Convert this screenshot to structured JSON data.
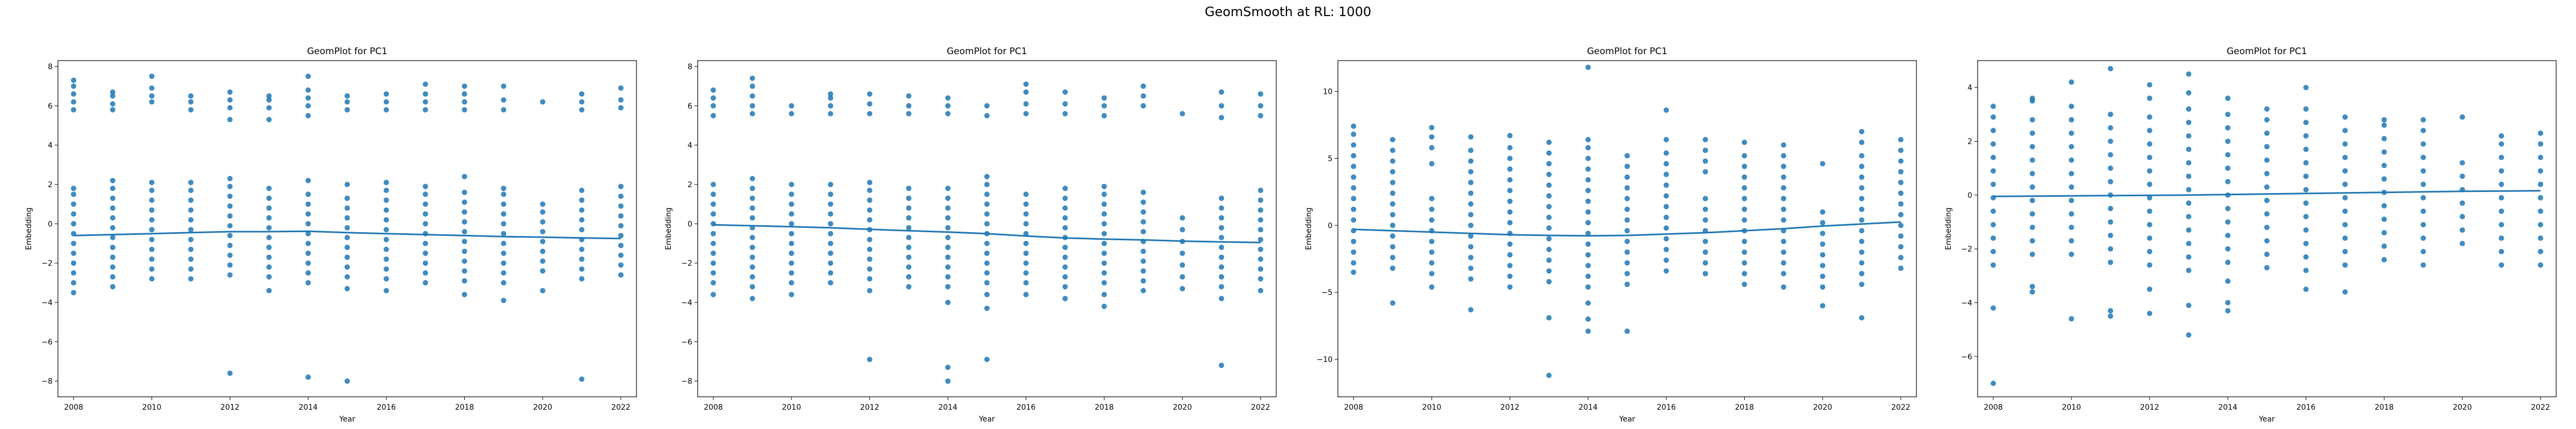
{
  "figure": {
    "suptitle": "GeomSmooth at RL: 1000",
    "point_color": "#1f77b4",
    "line_color": "#1f77b4",
    "axis_color": "#000000"
  },
  "chart_data": [
    {
      "type": "scatter",
      "title": "GeomPlot for PC1",
      "xlabel": "Year",
      "ylabel": "Embedding",
      "xlim": [
        2007.6,
        2022.4
      ],
      "ylim": [
        -8.8,
        8.3
      ],
      "xticks": [
        2008,
        2010,
        2012,
        2014,
        2016,
        2018,
        2020,
        2022
      ],
      "yticks": [
        -8,
        -6,
        -4,
        -2,
        0,
        2,
        4,
        6,
        8
      ],
      "years": [
        2008,
        2009,
        2010,
        2011,
        2012,
        2013,
        2014,
        2015,
        2016,
        2017,
        2018,
        2019,
        2020,
        2021,
        2022
      ],
      "points": {
        "2008": [
          -3.5,
          -3.0,
          -2.5,
          -2.0,
          -1.5,
          -1.0,
          -0.5,
          0.0,
          0.5,
          1.0,
          1.5,
          1.8,
          5.8,
          6.2,
          6.6,
          7.0,
          7.3
        ],
        "2009": [
          -3.2,
          -2.7,
          -2.2,
          -1.7,
          -1.2,
          -0.7,
          -0.2,
          0.3,
          0.8,
          1.3,
          1.8,
          2.2,
          5.8,
          6.1,
          6.5,
          6.7
        ],
        "2010": [
          -2.8,
          -2.3,
          -1.8,
          -1.3,
          -0.8,
          -0.3,
          0.2,
          0.7,
          1.2,
          1.7,
          2.1,
          6.2,
          6.5,
          6.9,
          7.5
        ],
        "2011": [
          -2.8,
          -2.3,
          -1.8,
          -1.3,
          -0.8,
          -0.3,
          0.2,
          0.7,
          1.2,
          1.7,
          2.1,
          5.8,
          6.2,
          6.5
        ],
        "2012": [
          -7.6,
          -2.6,
          -2.1,
          -1.6,
          -1.1,
          -0.6,
          -0.1,
          0.4,
          0.9,
          1.4,
          1.9,
          2.3,
          5.3,
          5.9,
          6.3,
          6.7
        ],
        "2013": [
          -3.4,
          -2.7,
          -2.2,
          -1.7,
          -1.2,
          -0.7,
          -0.2,
          0.3,
          0.8,
          1.3,
          1.8,
          5.3,
          5.9,
          6.3,
          6.5
        ],
        "2014": [
          -7.8,
          -3.0,
          -2.5,
          -2.0,
          -1.5,
          -1.0,
          -0.5,
          0.0,
          0.5,
          1.0,
          1.5,
          2.2,
          5.5,
          6.0,
          6.4,
          6.8,
          7.5
        ],
        "2015": [
          -8.0,
          -3.3,
          -2.7,
          -2.2,
          -1.7,
          -1.2,
          -0.7,
          -0.2,
          0.3,
          0.8,
          1.3,
          2.0,
          5.8,
          6.2,
          6.5
        ],
        "2016": [
          -3.4,
          -2.8,
          -2.3,
          -1.8,
          -1.3,
          -0.8,
          -0.3,
          0.2,
          0.7,
          1.2,
          1.7,
          2.1,
          5.8,
          6.2,
          6.6
        ],
        "2017": [
          -3.0,
          -2.5,
          -2.0,
          -1.5,
          -1.0,
          -0.5,
          0.0,
          0.5,
          1.0,
          1.5,
          1.9,
          5.8,
          6.2,
          6.6,
          7.1
        ],
        "2018": [
          -3.6,
          -2.9,
          -2.4,
          -1.9,
          -1.4,
          -0.9,
          -0.4,
          0.1,
          0.6,
          1.1,
          1.6,
          2.4,
          5.8,
          6.2,
          6.6,
          7.0
        ],
        "2019": [
          -3.9,
          -3.0,
          -2.5,
          -2.0,
          -1.5,
          -1.0,
          -0.5,
          0.0,
          0.5,
          1.0,
          1.5,
          1.8,
          5.8,
          6.3,
          7.0
        ],
        "2020": [
          -3.4,
          -2.4,
          -1.9,
          -1.4,
          -0.9,
          -0.4,
          0.1,
          0.6,
          1.0,
          6.2
        ],
        "2021": [
          -7.9,
          -2.8,
          -2.3,
          -1.8,
          -1.3,
          -0.8,
          -0.3,
          0.2,
          0.7,
          1.2,
          1.7,
          5.8,
          6.2,
          6.6
        ],
        "2022": [
          -2.6,
          -2.1,
          -1.6,
          -1.1,
          -0.6,
          -0.1,
          0.4,
          0.9,
          1.4,
          1.9,
          5.9,
          6.3,
          6.9
        ]
      },
      "smooth": [
        -0.6,
        -0.55,
        -0.5,
        -0.45,
        -0.4,
        -0.4,
        -0.38,
        -0.45,
        -0.5,
        -0.55,
        -0.6,
        -0.65,
        -0.68,
        -0.72,
        -0.75
      ]
    },
    {
      "type": "scatter",
      "title": "GeomPlot for PC1",
      "xlabel": "Year",
      "ylabel": "Embedding",
      "xlim": [
        2007.6,
        2022.4
      ],
      "ylim": [
        -8.8,
        8.3
      ],
      "xticks": [
        2008,
        2010,
        2012,
        2014,
        2016,
        2018,
        2020,
        2022
      ],
      "yticks": [
        -8,
        -6,
        -4,
        -2,
        0,
        2,
        4,
        6,
        8
      ],
      "years": [
        2008,
        2009,
        2010,
        2011,
        2012,
        2013,
        2014,
        2015,
        2016,
        2017,
        2018,
        2019,
        2020,
        2021,
        2022
      ],
      "points": {
        "2008": [
          -3.6,
          -3.0,
          -2.5,
          -2.0,
          -1.5,
          -1.0,
          -0.5,
          0.0,
          0.5,
          1.0,
          1.5,
          2.0,
          5.5,
          6.0,
          6.4,
          6.8
        ],
        "2009": [
          -3.8,
          -3.2,
          -2.7,
          -2.2,
          -1.7,
          -1.2,
          -0.7,
          -0.2,
          0.3,
          0.8,
          1.3,
          1.8,
          2.3,
          5.6,
          6.0,
          6.5,
          7.0,
          7.4
        ],
        "2010": [
          -3.6,
          -3.0,
          -2.5,
          -2.0,
          -1.5,
          -1.0,
          -0.5,
          0.0,
          0.5,
          1.0,
          1.5,
          2.0,
          5.6,
          6.0
        ],
        "2011": [
          -3.0,
          -2.5,
          -2.0,
          -1.5,
          -1.0,
          -0.5,
          0.0,
          0.5,
          1.0,
          1.5,
          2.0,
          5.6,
          6.0,
          6.4,
          6.6
        ],
        "2012": [
          -6.9,
          -3.4,
          -2.8,
          -2.3,
          -1.8,
          -1.3,
          -0.8,
          -0.3,
          0.2,
          0.7,
          1.2,
          1.7,
          2.1,
          5.6,
          6.1,
          6.6
        ],
        "2013": [
          -3.2,
          -2.7,
          -2.2,
          -1.7,
          -1.2,
          -0.7,
          -0.2,
          0.3,
          0.8,
          1.3,
          1.8,
          5.6,
          6.0,
          6.5
        ],
        "2014": [
          -8.0,
          -7.3,
          -4.0,
          -3.2,
          -2.7,
          -2.2,
          -1.7,
          -1.2,
          -0.7,
          -0.2,
          0.3,
          0.8,
          1.3,
          1.8,
          5.6,
          6.0,
          6.4
        ],
        "2015": [
          -6.9,
          -4.3,
          -3.6,
          -3.0,
          -2.5,
          -2.0,
          -1.5,
          -1.0,
          -0.5,
          0.0,
          0.5,
          1.0,
          1.5,
          2.0,
          2.4,
          5.5,
          6.0
        ],
        "2016": [
          -3.6,
          -3.0,
          -2.5,
          -2.0,
          -1.5,
          -1.0,
          -0.5,
          0.0,
          0.5,
          1.0,
          1.5,
          5.6,
          6.1,
          6.7,
          7.1
        ],
        "2017": [
          -3.8,
          -3.2,
          -2.7,
          -2.2,
          -1.7,
          -1.2,
          -0.7,
          -0.2,
          0.3,
          0.8,
          1.3,
          1.8,
          5.6,
          6.1,
          6.7
        ],
        "2018": [
          -4.2,
          -3.6,
          -3.0,
          -2.5,
          -2.0,
          -1.5,
          -1.0,
          -0.5,
          0.0,
          0.5,
          1.0,
          1.5,
          1.9,
          5.5,
          6.0,
          6.4
        ],
        "2019": [
          -3.4,
          -2.9,
          -2.4,
          -1.9,
          -1.4,
          -0.9,
          -0.4,
          0.1,
          0.6,
          1.1,
          1.6,
          6.0,
          6.5,
          7.0
        ],
        "2020": [
          -3.3,
          -2.7,
          -2.1,
          -1.5,
          -0.9,
          -0.3,
          0.3,
          5.6
        ],
        "2021": [
          -7.2,
          -3.8,
          -3.2,
          -2.7,
          -2.2,
          -1.7,
          -1.2,
          -0.7,
          -0.2,
          0.3,
          0.8,
          1.3,
          5.4,
          6.0,
          6.7
        ],
        "2022": [
          -3.4,
          -2.8,
          -2.3,
          -1.8,
          -1.3,
          -0.8,
          -0.3,
          0.2,
          0.7,
          1.2,
          1.7,
          5.5,
          6.0,
          6.6
        ]
      },
      "smooth": [
        -0.05,
        -0.1,
        -0.15,
        -0.2,
        -0.28,
        -0.35,
        -0.42,
        -0.5,
        -0.62,
        -0.72,
        -0.78,
        -0.82,
        -0.88,
        -0.92,
        -0.95
      ]
    },
    {
      "type": "scatter",
      "title": "GeomPlot for PC1",
      "xlabel": "Year",
      "ylabel": "Embedding",
      "xlim": [
        2007.6,
        2022.4
      ],
      "ylim": [
        -12.8,
        12.3
      ],
      "xticks": [
        2008,
        2010,
        2012,
        2014,
        2016,
        2018,
        2020,
        2022
      ],
      "yticks": [
        -10,
        -5,
        0,
        5,
        10
      ],
      "years": [
        2008,
        2009,
        2010,
        2011,
        2012,
        2013,
        2014,
        2015,
        2016,
        2017,
        2018,
        2019,
        2020,
        2021,
        2022
      ],
      "points": {
        "2008": [
          -3.5,
          -2.8,
          -2.0,
          -1.2,
          -0.4,
          0.4,
          1.2,
          2.0,
          2.8,
          3.6,
          4.4,
          5.2,
          6.0,
          6.8,
          7.4
        ],
        "2009": [
          -5.8,
          -3.2,
          -2.4,
          -1.6,
          -0.8,
          0.0,
          0.8,
          1.6,
          2.4,
          3.2,
          4.0,
          4.8,
          5.6,
          6.4
        ],
        "2010": [
          -4.6,
          -3.6,
          -2.8,
          -2.0,
          -1.2,
          -0.4,
          0.4,
          1.2,
          2.0,
          4.6,
          5.8,
          6.6,
          7.3
        ],
        "2011": [
          -6.3,
          -4.0,
          -3.2,
          -2.4,
          -1.6,
          -0.8,
          0.0,
          0.8,
          1.6,
          2.4,
          3.2,
          4.0,
          4.8,
          5.6,
          6.6
        ],
        "2012": [
          -4.6,
          -3.8,
          -3.0,
          -2.2,
          -1.4,
          -0.6,
          0.2,
          1.0,
          1.8,
          2.6,
          3.4,
          4.2,
          5.0,
          5.8,
          6.7
        ],
        "2013": [
          -11.2,
          -6.9,
          -4.2,
          -3.4,
          -2.6,
          -1.8,
          -1.0,
          -0.2,
          0.6,
          1.4,
          2.2,
          3.0,
          3.8,
          4.6,
          5.4,
          6.2
        ],
        "2014": [
          -7.9,
          -7.0,
          -5.8,
          -4.6,
          -3.8,
          -3.0,
          -2.2,
          -1.4,
          -0.6,
          0.2,
          1.0,
          1.8,
          2.6,
          3.4,
          4.2,
          5.0,
          5.8,
          6.4,
          11.8
        ],
        "2015": [
          -7.9,
          -4.4,
          -3.6,
          -2.8,
          -2.0,
          -1.2,
          -0.4,
          0.4,
          1.2,
          2.0,
          2.8,
          3.6,
          4.4,
          5.2
        ],
        "2016": [
          -3.4,
          -2.6,
          -1.8,
          -1.0,
          -0.2,
          0.6,
          1.4,
          2.2,
          3.0,
          3.8,
          4.6,
          5.4,
          6.4,
          8.6
        ],
        "2017": [
          -3.6,
          -2.8,
          -2.0,
          -1.2,
          -0.4,
          0.4,
          1.2,
          2.0,
          4.0,
          4.8,
          5.6,
          6.4
        ],
        "2018": [
          -4.4,
          -3.6,
          -2.8,
          -2.0,
          -1.2,
          -0.4,
          0.4,
          1.2,
          2.0,
          2.8,
          3.6,
          4.4,
          5.2,
          6.2
        ],
        "2019": [
          -4.6,
          -3.6,
          -2.8,
          -2.0,
          -1.2,
          -0.4,
          0.4,
          1.2,
          2.0,
          2.8,
          3.6,
          4.4,
          5.2,
          6.0
        ],
        "2020": [
          -6.0,
          -4.6,
          -3.8,
          -3.0,
          -2.2,
          -1.4,
          -0.6,
          0.2,
          1.0,
          4.6
        ],
        "2021": [
          -6.9,
          -4.4,
          -3.6,
          -2.8,
          -2.0,
          -1.2,
          -0.4,
          0.4,
          1.2,
          2.0,
          2.8,
          3.6,
          4.4,
          5.2,
          6.2,
          7.0
        ],
        "2022": [
          -3.2,
          -2.4,
          -1.6,
          -0.8,
          0.0,
          0.8,
          1.6,
          2.4,
          3.2,
          4.0,
          4.8,
          5.6,
          6.4
        ]
      },
      "smooth": [
        -0.3,
        -0.4,
        -0.5,
        -0.6,
        -0.7,
        -0.75,
        -0.78,
        -0.75,
        -0.65,
        -0.55,
        -0.4,
        -0.25,
        -0.05,
        0.1,
        0.25
      ]
    },
    {
      "type": "scatter",
      "title": "GeomPlot for PC1",
      "xlabel": "Year",
      "ylabel": "Embedding",
      "xlim": [
        2007.6,
        2022.4
      ],
      "ylim": [
        -7.5,
        5.0
      ],
      "xticks": [
        2008,
        2010,
        2012,
        2014,
        2016,
        2018,
        2020,
        2022
      ],
      "yticks": [
        -6,
        -4,
        -2,
        0,
        2,
        4
      ],
      "years": [
        2008,
        2009,
        2010,
        2011,
        2012,
        2013,
        2014,
        2015,
        2016,
        2017,
        2018,
        2019,
        2020,
        2021,
        2022
      ],
      "points": {
        "2008": [
          -7.0,
          -4.2,
          -2.6,
          -2.1,
          -1.6,
          -1.1,
          -0.6,
          -0.1,
          0.4,
          0.9,
          1.4,
          1.9,
          2.4,
          2.9,
          3.3
        ],
        "2009": [
          -3.6,
          -3.4,
          -2.2,
          -1.7,
          -1.2,
          -0.7,
          -0.2,
          0.3,
          0.8,
          1.3,
          1.8,
          2.3,
          2.8,
          3.5,
          3.6
        ],
        "2010": [
          -4.6,
          -2.2,
          -1.7,
          -1.2,
          -0.7,
          -0.2,
          0.3,
          0.8,
          1.3,
          1.8,
          2.3,
          2.8,
          3.3,
          4.2
        ],
        "2011": [
          -4.5,
          -4.3,
          -2.5,
          -2.0,
          -1.5,
          -1.0,
          -0.5,
          0.0,
          0.5,
          1.0,
          1.5,
          2.0,
          2.5,
          3.0,
          4.7
        ],
        "2012": [
          -4.4,
          -3.5,
          -2.6,
          -2.1,
          -1.6,
          -1.1,
          -0.6,
          -0.1,
          0.4,
          0.9,
          1.4,
          1.9,
          2.4,
          2.9,
          3.6,
          4.1
        ],
        "2013": [
          -5.2,
          -4.1,
          -2.8,
          -2.3,
          -1.8,
          -1.3,
          -0.8,
          -0.3,
          0.2,
          0.7,
          1.2,
          1.7,
          2.2,
          2.7,
          3.2,
          3.8,
          4.5
        ],
        "2014": [
          -4.3,
          -4.0,
          -3.2,
          -2.5,
          -2.0,
          -1.5,
          -1.0,
          -0.5,
          0.0,
          0.5,
          1.0,
          1.5,
          2.0,
          2.5,
          3.0,
          3.6
        ],
        "2015": [
          -2.7,
          -2.2,
          -1.7,
          -1.2,
          -0.7,
          -0.2,
          0.3,
          0.8,
          1.3,
          1.8,
          2.3,
          2.8,
          3.2
        ],
        "2016": [
          -3.5,
          -2.8,
          -2.3,
          -1.8,
          -1.3,
          -0.8,
          -0.3,
          0.2,
          0.7,
          1.2,
          1.7,
          2.2,
          2.7,
          3.2,
          4.0
        ],
        "2017": [
          -3.6,
          -2.6,
          -2.1,
          -1.6,
          -1.1,
          -0.6,
          -0.1,
          0.4,
          0.9,
          1.4,
          1.9,
          2.4,
          2.9
        ],
        "2018": [
          -2.4,
          -1.9,
          -1.4,
          -0.9,
          -0.4,
          0.1,
          0.6,
          1.1,
          1.6,
          2.1,
          2.6,
          2.8
        ],
        "2019": [
          -2.6,
          -2.1,
          -1.6,
          -1.1,
          -0.6,
          -0.1,
          0.4,
          0.9,
          1.4,
          1.9,
          2.4,
          2.8
        ],
        "2020": [
          -1.8,
          -1.3,
          -0.8,
          -0.3,
          0.2,
          0.7,
          1.2,
          2.9
        ],
        "2021": [
          -2.6,
          -2.1,
          -1.6,
          -1.1,
          -0.6,
          -0.1,
          0.4,
          0.9,
          1.4,
          1.9,
          2.2
        ],
        "2022": [
          -2.6,
          -2.1,
          -1.6,
          -1.1,
          -0.6,
          -0.1,
          0.4,
          0.9,
          1.4,
          1.9,
          2.3
        ]
      },
      "smooth": [
        -0.05,
        -0.04,
        -0.03,
        -0.02,
        -0.01,
        0.0,
        0.02,
        0.04,
        0.06,
        0.08,
        0.1,
        0.12,
        0.14,
        0.15,
        0.16
      ]
    }
  ]
}
